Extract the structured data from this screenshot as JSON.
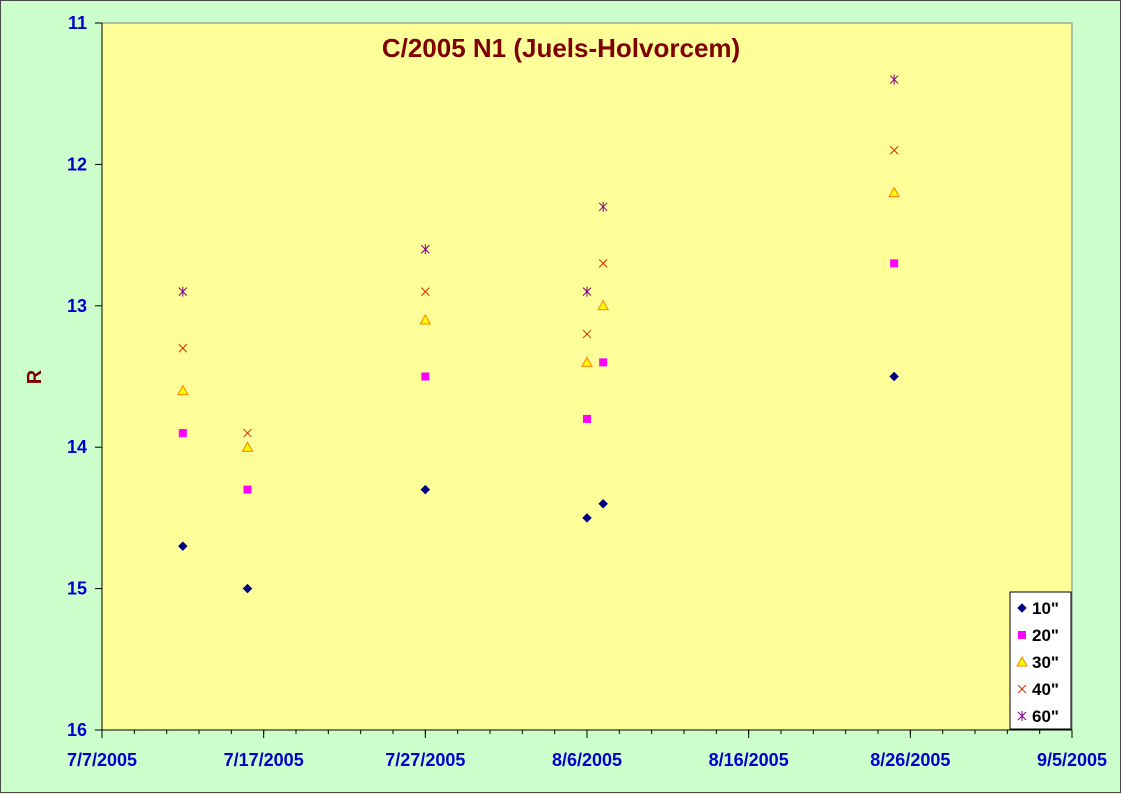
{
  "chart_data": {
    "type": "scatter",
    "title": "C/2005 N1 (Juels-Holvorcem)",
    "xlabel": "",
    "ylabel": "R",
    "x_axis": {
      "type": "date",
      "min": "2005-07-07",
      "max": "2005-09-05",
      "tick_labels": [
        "7/7/2005",
        "7/17/2005",
        "7/27/2005",
        "8/6/2005",
        "8/16/2005",
        "8/26/2005",
        "9/5/2005"
      ],
      "tick_dates": [
        "2005-07-07",
        "2005-07-17",
        "2005-07-27",
        "2005-08-06",
        "2005-08-16",
        "2005-08-26",
        "2005-09-05"
      ],
      "minor_tick_every_days": 2
    },
    "y_axis": {
      "min": 11,
      "max": 16,
      "reversed": true,
      "tick_labels": [
        "11",
        "12",
        "13",
        "14",
        "15",
        "16"
      ],
      "tick_values": [
        11,
        12,
        13,
        14,
        15,
        16
      ]
    },
    "grid": false,
    "legend_position": "bottom-right",
    "plot_background": "#ffff99",
    "page_background": "#ccffcc",
    "series": [
      {
        "name": "10\"",
        "marker": "diamond",
        "color": "#000080",
        "points": [
          {
            "x": "2005-07-12",
            "y": 14.7
          },
          {
            "x": "2005-07-16",
            "y": 15.0
          },
          {
            "x": "2005-07-27",
            "y": 14.3
          },
          {
            "x": "2005-08-06",
            "y": 14.5
          },
          {
            "x": "2005-08-07",
            "y": 14.4
          },
          {
            "x": "2005-08-25",
            "y": 13.5
          }
        ]
      },
      {
        "name": "20\"",
        "marker": "square",
        "color": "#ff00ff",
        "points": [
          {
            "x": "2005-07-12",
            "y": 13.9
          },
          {
            "x": "2005-07-16",
            "y": 14.3
          },
          {
            "x": "2005-07-27",
            "y": 13.5
          },
          {
            "x": "2005-08-06",
            "y": 13.8
          },
          {
            "x": "2005-08-07",
            "y": 13.4
          },
          {
            "x": "2005-08-25",
            "y": 12.7
          }
        ]
      },
      {
        "name": "30\"",
        "marker": "triangle",
        "color": "#ff8000",
        "fill": "#ffff00",
        "points": [
          {
            "x": "2005-07-12",
            "y": 13.6
          },
          {
            "x": "2005-07-16",
            "y": 14.0
          },
          {
            "x": "2005-07-27",
            "y": 13.1
          },
          {
            "x": "2005-08-06",
            "y": 13.4
          },
          {
            "x": "2005-08-07",
            "y": 13.0
          },
          {
            "x": "2005-08-25",
            "y": 12.2
          }
        ]
      },
      {
        "name": "40\"",
        "marker": "x",
        "color": "#cc3300",
        "points": [
          {
            "x": "2005-07-12",
            "y": 13.3
          },
          {
            "x": "2005-07-16",
            "y": 13.9
          },
          {
            "x": "2005-07-27",
            "y": 12.9
          },
          {
            "x": "2005-08-06",
            "y": 13.2
          },
          {
            "x": "2005-08-07",
            "y": 12.7
          },
          {
            "x": "2005-08-25",
            "y": 11.9
          }
        ]
      },
      {
        "name": "60\"",
        "marker": "star",
        "color": "#800080",
        "points": [
          {
            "x": "2005-07-12",
            "y": 12.9
          },
          {
            "x": "2005-07-27",
            "y": 12.6
          },
          {
            "x": "2005-08-06",
            "y": 12.9
          },
          {
            "x": "2005-08-07",
            "y": 12.3
          },
          {
            "x": "2005-08-25",
            "y": 11.4
          }
        ]
      }
    ]
  }
}
